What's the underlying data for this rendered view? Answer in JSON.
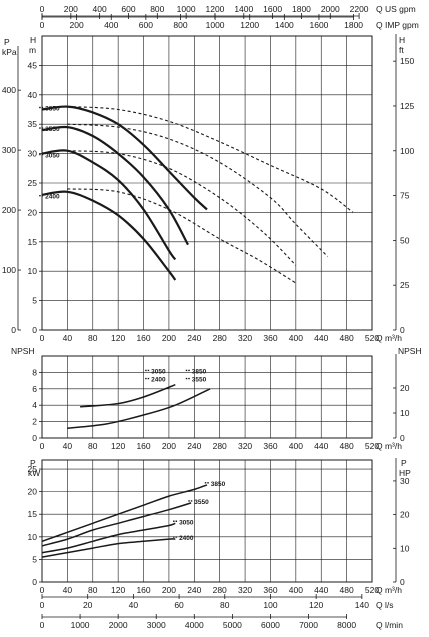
{
  "colors": {
    "ink": "#1a1a1a",
    "grid": "#222222"
  },
  "top_axes": {
    "us_gpm": {
      "label": "Q US gpm",
      "ticks": [
        0,
        200,
        400,
        600,
        800,
        1000,
        1200,
        1400,
        1600,
        1800,
        2000,
        2200
      ]
    },
    "imp_gpm": {
      "label": "Q IMP gpm",
      "ticks": [
        0,
        200,
        400,
        600,
        800,
        1000,
        1200,
        1400,
        1600,
        1800
      ]
    }
  },
  "bottom_axes": {
    "ls": {
      "label": "Q l/s",
      "ticks": [
        0,
        20,
        40,
        60,
        80,
        100,
        120,
        140
      ]
    },
    "lmin": {
      "label": "Q l/min",
      "ticks": [
        0,
        1000,
        2000,
        3000,
        4000,
        5000,
        6000,
        7000,
        8000
      ]
    }
  },
  "chart_data": [
    {
      "type": "line",
      "name": "head",
      "title": "",
      "ylabel_left": [
        "H",
        "m"
      ],
      "ylabel_left2": [
        "P",
        "kPa"
      ],
      "ylabel_right": [
        "H",
        "ft"
      ],
      "xlabel": "Q m³/h",
      "xlim": [
        0,
        520
      ],
      "ylim": [
        0,
        50
      ],
      "x_ticks": [
        0,
        40,
        80,
        120,
        160,
        200,
        240,
        280,
        320,
        360,
        400,
        440,
        480,
        520
      ],
      "y_ticks": [
        0,
        5,
        10,
        15,
        20,
        25,
        30,
        35,
        40,
        45
      ],
      "kpa_ticks": [
        0,
        100,
        200,
        300,
        400
      ],
      "ft_ticks": [
        0,
        25,
        50,
        75,
        100,
        125,
        150
      ],
      "grid": true,
      "series": [
        {
          "name": "3850",
          "style": "solid",
          "x": [
            0,
            40,
            80,
            120,
            160,
            200,
            240,
            260
          ],
          "y": [
            37.5,
            38,
            37,
            35,
            31.5,
            27,
            22.5,
            20.5
          ]
        },
        {
          "name": "3550",
          "style": "solid",
          "x": [
            0,
            40,
            80,
            120,
            160,
            200,
            230
          ],
          "y": [
            34,
            34.5,
            33,
            30,
            26,
            20.5,
            14.5
          ]
        },
        {
          "name": "3050",
          "style": "solid",
          "x": [
            0,
            40,
            80,
            120,
            160,
            200,
            210
          ],
          "y": [
            30,
            30.5,
            28.5,
            25.5,
            20.5,
            13.5,
            12
          ]
        },
        {
          "name": "2400",
          "style": "solid",
          "x": [
            0,
            40,
            80,
            120,
            160,
            200,
            210
          ],
          "y": [
            23,
            23.5,
            22,
            19.5,
            15.5,
            10,
            8.5
          ]
        },
        {
          "name": "",
          "style": "dashed",
          "x": [
            40,
            120,
            200,
            280,
            360,
            440,
            490
          ],
          "y": [
            38,
            37.5,
            35.5,
            32,
            28,
            24,
            20
          ]
        },
        {
          "name": "",
          "style": "dashed",
          "x": [
            40,
            120,
            200,
            280,
            360,
            400,
            450
          ],
          "y": [
            35,
            34.5,
            32.5,
            28.5,
            22.5,
            18,
            12.5
          ]
        },
        {
          "name": "",
          "style": "dashed",
          "x": [
            40,
            120,
            200,
            280,
            350,
            400
          ],
          "y": [
            30.5,
            30,
            27.5,
            22.5,
            16.5,
            11
          ]
        },
        {
          "name": "",
          "style": "dashed",
          "x": [
            40,
            120,
            200,
            280,
            340,
            400
          ],
          "y": [
            24,
            23.5,
            20.5,
            15.5,
            12,
            8
          ]
        }
      ],
      "labels": [
        {
          "text": "3850",
          "x": 5,
          "y": 37.5
        },
        {
          "text": "3550",
          "x": 5,
          "y": 34
        },
        {
          "text": "3050",
          "x": 5,
          "y": 29.5
        },
        {
          "text": "2400",
          "x": 5,
          "y": 22.5
        }
      ]
    },
    {
      "type": "line",
      "name": "npsh",
      "ylabel_left": "NPSH",
      "ylabel_right": "NPSH",
      "xlabel": "Q m³/h",
      "xlim": [
        0,
        520
      ],
      "ylim": [
        0,
        10
      ],
      "x_ticks": [
        0,
        40,
        80,
        120,
        160,
        200,
        240,
        280,
        320,
        360,
        400,
        440,
        480,
        520
      ],
      "y_ticks": [
        0,
        2,
        4,
        6,
        8
      ],
      "ft_ticks": [
        0,
        10,
        20
      ],
      "grid": true,
      "series": [
        {
          "name": "3050 / 2400",
          "x": [
            60,
            120,
            160,
            210
          ],
          "y": [
            3.8,
            4.2,
            5,
            6.5
          ]
        },
        {
          "name": "3850 / 3550",
          "x": [
            40,
            100,
            160,
            210,
            265
          ],
          "y": [
            1.2,
            1.7,
            2.8,
            4,
            6
          ]
        }
      ],
      "labels": [
        {
          "text": "3050",
          "x": 172,
          "y": 8
        },
        {
          "text": "2400",
          "x": 172,
          "y": 7
        },
        {
          "text": "3850",
          "x": 236,
          "y": 8
        },
        {
          "text": "3550",
          "x": 236,
          "y": 7
        }
      ]
    },
    {
      "type": "line",
      "name": "power",
      "ylabel_left": [
        "P",
        "kW"
      ],
      "ylabel_right": [
        "P",
        "HP"
      ],
      "xlabel": "Q m³/h",
      "xlim": [
        0,
        520
      ],
      "ylim": [
        0,
        27
      ],
      "x_ticks": [
        0,
        40,
        80,
        120,
        160,
        200,
        240,
        280,
        320,
        360,
        400,
        440,
        480,
        520
      ],
      "y_ticks": [
        0,
        5,
        10,
        15,
        20,
        25
      ],
      "hp_ticks": [
        0,
        10,
        20,
        30
      ],
      "grid": true,
      "series": [
        {
          "name": "3850",
          "x": [
            0,
            40,
            80,
            120,
            160,
            200,
            240,
            260
          ],
          "y": [
            9,
            11,
            13,
            15,
            17,
            19,
            20.5,
            21.5
          ]
        },
        {
          "name": "3550",
          "x": [
            0,
            40,
            80,
            120,
            160,
            200,
            235
          ],
          "y": [
            8,
            9.5,
            11.5,
            13,
            14.5,
            16,
            17.5
          ]
        },
        {
          "name": "3050",
          "x": [
            0,
            40,
            80,
            120,
            160,
            200,
            210
          ],
          "y": [
            6.5,
            7.5,
            9,
            10.5,
            11.5,
            12.5,
            13
          ]
        },
        {
          "name": "2400",
          "x": [
            0,
            40,
            80,
            120,
            160,
            200,
            210
          ],
          "y": [
            5.5,
            6.5,
            7.5,
            8.5,
            9,
            9.5,
            9.5
          ]
        }
      ],
      "labels": [
        {
          "text": "3850",
          "x": 266,
          "y": 21.5
        },
        {
          "text": "3550",
          "x": 240,
          "y": 17.5
        },
        {
          "text": "3050",
          "x": 216,
          "y": 13
        },
        {
          "text": "2400",
          "x": 216,
          "y": 9.5
        }
      ]
    }
  ]
}
